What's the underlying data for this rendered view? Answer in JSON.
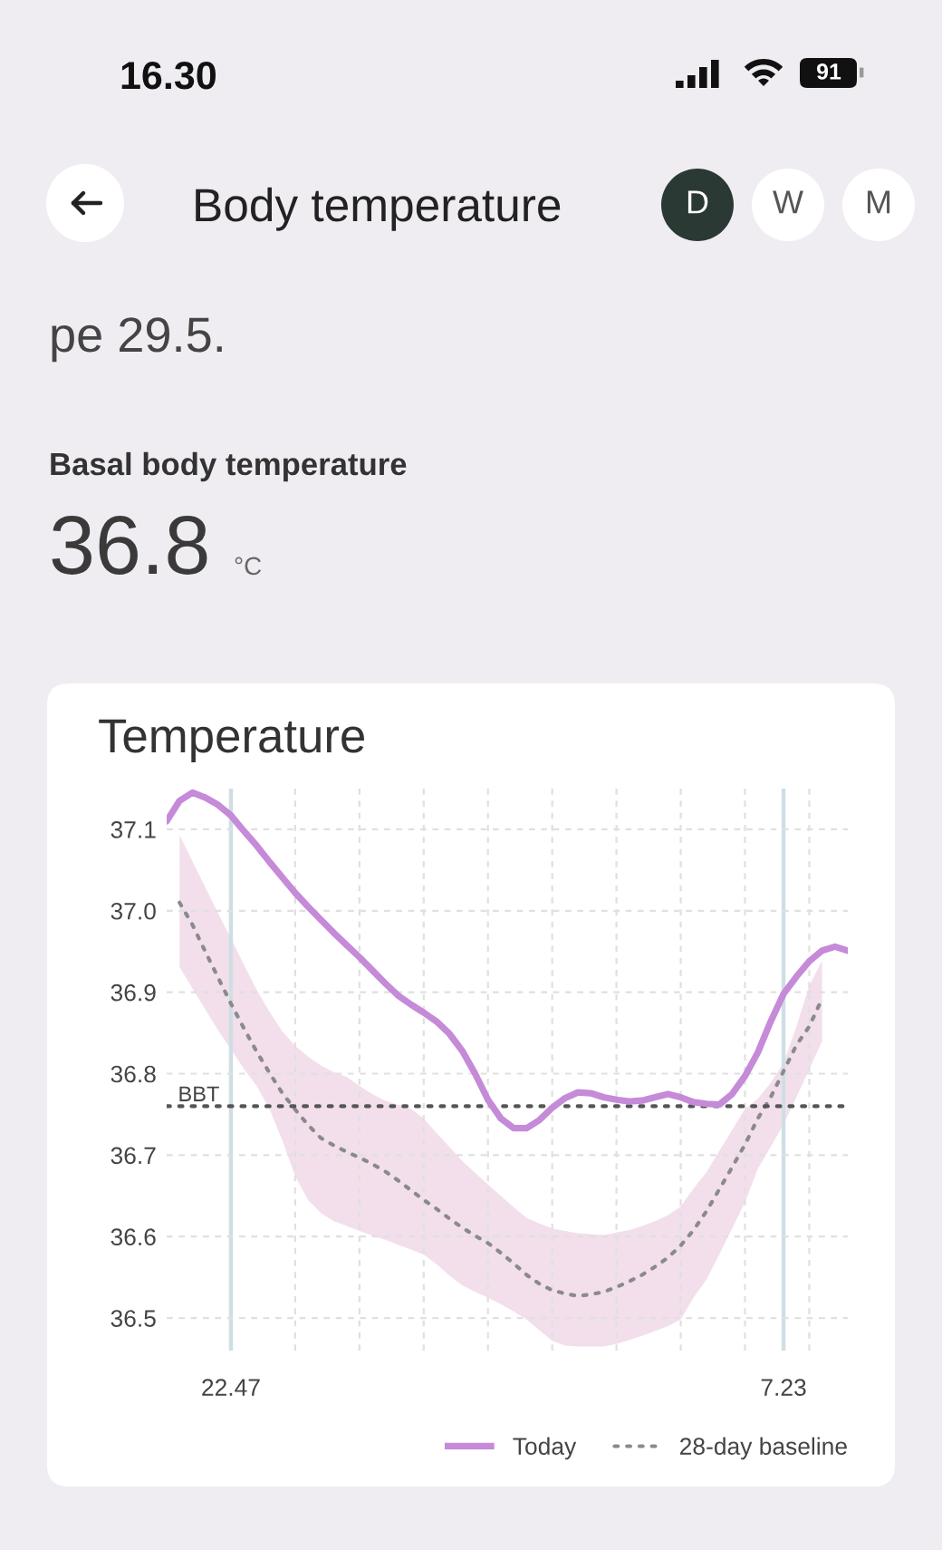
{
  "chart_data": {
    "type": "line",
    "title": "Temperature",
    "annotations": [
      "16.30",
      "91",
      "Body temperature",
      "D",
      "W",
      "M",
      "pe 29.5.",
      "Basal body temperature",
      "36.8",
      "°C"
    ],
    "categories": [
      null,
      null,
      null,
      null,
      null,
      "22.47",
      null,
      null,
      null,
      null,
      null,
      null,
      null,
      null,
      null,
      null,
      null,
      null,
      null,
      null,
      null,
      null,
      null,
      null,
      null,
      null,
      null,
      null,
      null,
      null,
      null,
      null,
      null,
      null,
      null,
      null,
      null,
      null,
      null,
      null,
      null,
      null,
      null,
      null,
      null,
      null,
      null,
      null,
      "7.23",
      null,
      null,
      null,
      null,
      null
    ],
    "ylim": [
      36.46,
      37.15
    ],
    "yticks": [
      36.5,
      36.6,
      36.7,
      36.8,
      36.9,
      {
        "value": 37,
        "label": "37.0"
      },
      37.1
    ],
    "grid": true,
    "legend": "bottom right",
    "ref_lines": [
      {
        "axis": "y",
        "value": 36.76,
        "label": "BBT",
        "color": "#555555",
        "line_style": "dotted"
      }
    ],
    "series": [
      {
        "name": "Today",
        "color": "#c58ad8",
        "values": [
          37.11,
          37.135,
          37.145,
          37.139,
          37.13,
          37.117,
          37.098,
          37.08,
          37.06,
          37.041,
          37.022,
          37.005,
          36.989,
          36.973,
          36.958,
          36.943,
          36.927,
          36.911,
          36.896,
          36.885,
          36.875,
          36.864,
          36.849,
          36.828,
          36.8,
          36.768,
          36.745,
          36.733,
          36.733,
          36.743,
          36.758,
          36.77,
          36.777,
          36.776,
          36.771,
          36.768,
          36.766,
          36.767,
          36.771,
          36.775,
          36.771,
          36.765,
          36.763,
          36.762,
          36.775,
          36.797,
          36.826,
          36.864,
          36.898,
          36.919,
          36.938,
          36.951,
          36.956,
          36.951
        ]
      },
      {
        "name": "28-day baseline",
        "line_style": "dotted",
        "color": "#8a8a8a",
        "values": [
          null,
          37.01,
          36.983,
          36.95,
          36.918,
          36.886,
          36.856,
          36.827,
          36.801,
          36.776,
          36.756,
          36.737,
          36.721,
          36.712,
          36.704,
          36.697,
          36.689,
          36.68,
          36.669,
          36.657,
          36.645,
          36.634,
          36.622,
          36.611,
          36.601,
          36.592,
          36.58,
          36.567,
          36.553,
          36.542,
          36.534,
          36.53,
          36.527,
          36.529,
          36.532,
          36.538,
          36.545,
          36.553,
          36.563,
          36.574,
          36.589,
          36.608,
          36.631,
          36.658,
          36.685,
          36.713,
          36.745,
          36.771,
          36.803,
          36.835,
          36.858,
          36.892,
          null,
          null
        ],
        "upper": [
          null,
          37.093,
          37.061,
          37.029,
          36.997,
          36.966,
          36.934,
          36.903,
          36.876,
          36.852,
          36.834,
          36.821,
          36.81,
          36.802,
          36.796,
          36.785,
          36.775,
          36.767,
          36.762,
          36.757,
          36.745,
          36.727,
          36.71,
          36.693,
          36.678,
          36.664,
          36.65,
          36.636,
          36.623,
          36.616,
          36.61,
          36.607,
          36.604,
          36.603,
          36.602,
          36.605,
          36.608,
          36.613,
          36.619,
          36.626,
          36.637,
          36.659,
          36.679,
          36.705,
          36.731,
          36.757,
          36.769,
          36.789,
          36.813,
          36.858,
          36.908,
          36.939,
          null,
          null
        ],
        "lower": [
          null,
          36.931,
          36.905,
          36.879,
          36.853,
          36.83,
          36.806,
          36.785,
          36.757,
          36.718,
          36.674,
          36.645,
          36.629,
          36.619,
          36.613,
          36.607,
          36.601,
          36.596,
          36.59,
          36.584,
          36.578,
          36.566,
          36.552,
          36.54,
          36.532,
          36.525,
          36.517,
          36.508,
          36.498,
          36.485,
          36.472,
          36.466,
          36.465,
          36.465,
          36.465,
          36.468,
          36.473,
          36.478,
          36.484,
          36.49,
          36.498,
          36.525,
          36.547,
          36.578,
          36.61,
          36.642,
          36.683,
          36.71,
          36.738,
          36.771,
          36.805,
          36.84,
          null,
          null
        ],
        "colors": [
          null,
          "#f2dfeb",
          "#f2dfeb",
          "#f2dfeb",
          "#f2dfeb",
          "#f2dfeb",
          "#f2dfeb",
          "#f2dfeb",
          "#f2dfeb",
          "#f2dfeb",
          "#f2dfeb",
          "#f2dfeb",
          "#f2dfeb",
          "#f2dfeb",
          "#f2dfeb",
          "#f2dfeb",
          "#f2dfeb",
          "#f2dfeb",
          "#f2dfeb",
          "#f2dfeb",
          "#f2dfeb",
          "#f2dfeb",
          "#f2dfeb",
          "#f2dfeb",
          "#f2dfeb",
          "#f2dfeb",
          "#f2dfeb",
          "#f2dfeb",
          "#f2dfeb",
          "#f2dfeb",
          "#f2dfeb",
          "#f2dfeb",
          "#f2dfeb",
          "#f2dfeb",
          "#f2dfeb",
          "#f2dfeb",
          "#f2dfeb",
          "#f2dfeb",
          "#f2dfeb",
          "#f2dfeb",
          "#f2dfeb",
          "#f2dfeb",
          "#f2dfeb",
          "#f2dfeb",
          "#f2dfeb",
          "#f2dfeb",
          "#f2dfeb",
          "#f2dfeb",
          "#f2dfeb",
          "#f2dfeb",
          "#f2dfeb",
          "#f2dfeb",
          null,
          null
        ]
      }
    ]
  }
}
